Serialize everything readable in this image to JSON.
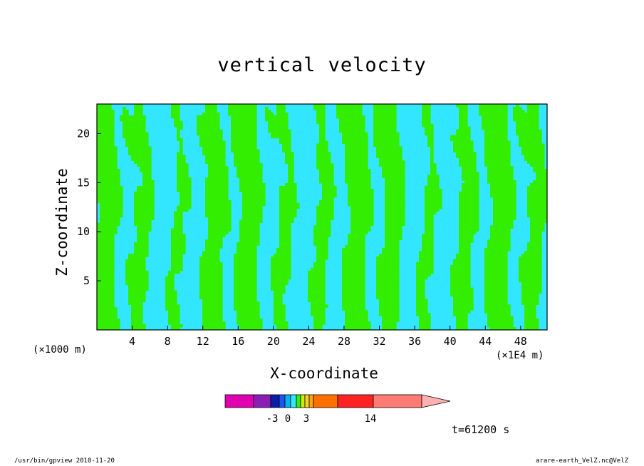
{
  "chart_data": {
    "type": "heatmap",
    "title": "vertical velocity",
    "xlabel": "X-coordinate",
    "ylabel": "Z-coordinate",
    "x_unit_left": "(×1000 m)",
    "x_unit_right": "(×1E4 m)",
    "x_ticks": [
      "4",
      "8",
      "12",
      "16",
      "20",
      "24",
      "28",
      "32",
      "36",
      "40",
      "44",
      "48"
    ],
    "y_ticks": [
      "5",
      "10",
      "15",
      "20"
    ],
    "x_range": [
      0,
      51
    ],
    "y_range": [
      0,
      23
    ],
    "colors": {
      "positive": "#33ee00",
      "negative": "#33e6ff",
      "strong_updraft": "#000000"
    },
    "colorbar": {
      "colors": [
        "#e000b0",
        "#8a1fb5",
        "#0a1ea8",
        "#1a55f5",
        "#00b4f0",
        "#33e6ff",
        "#33ee00",
        "#ccee00",
        "#ffd21c",
        "#ffa41c",
        "#ff7000",
        "#ff2222",
        "#ff7b73",
        "#ffb0b0"
      ],
      "labels": [
        "-3",
        "0",
        "3",
        "14"
      ]
    },
    "time": "t=61200 s"
  },
  "footer": {
    "left": "/usr/bin/gpview   2010-11-20",
    "right": "arare-earth_VelZ.nc@VelZ"
  }
}
